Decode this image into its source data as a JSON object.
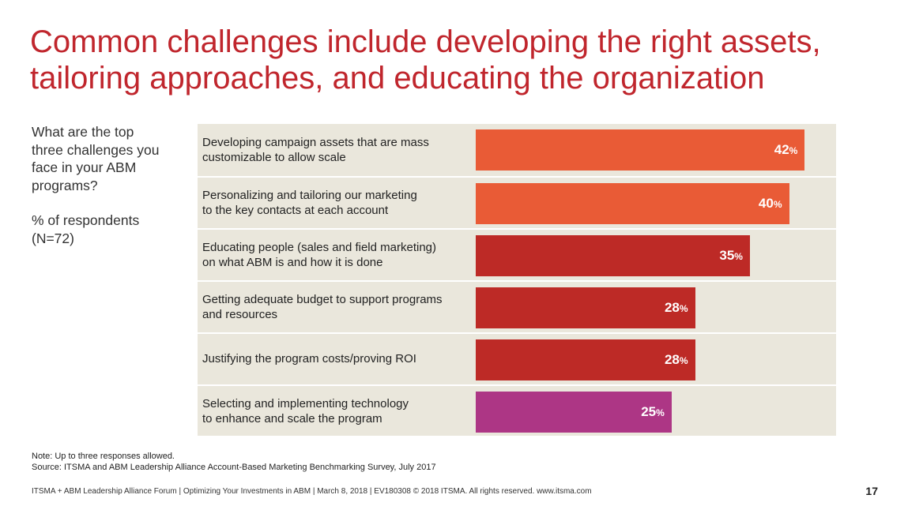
{
  "title": {
    "line1": "Common challenges include developing the right assets,",
    "line2": "tailoring approaches, and educating the organization"
  },
  "question": {
    "lines": [
      "What are the top",
      "three challenges you",
      "face in your ABM",
      "programs?"
    ],
    "respondents_lines": [
      "% of respondents",
      "(N=72)"
    ]
  },
  "chart_data": {
    "type": "bar",
    "orientation": "horizontal",
    "categories": [
      [
        "Developing campaign assets that are mass",
        "customizable to allow scale"
      ],
      [
        "Personalizing and tailoring our marketing",
        "to the key contacts at each account"
      ],
      [
        "Educating people (sales and field marketing)",
        "on what ABM is and how it is done"
      ],
      [
        "Getting adequate budget to support programs",
        "and resources"
      ],
      [
        "Justifying the program costs/proving ROI"
      ],
      [
        "Selecting and implementing technology",
        "to enhance and scale the program"
      ]
    ],
    "values": [
      42,
      40,
      35,
      28,
      28,
      25
    ],
    "value_suffix": "%",
    "bar_colors": [
      "#e95b36",
      "#e95b36",
      "#bd2a26",
      "#bd2a26",
      "#bd2a26",
      "#ad3685"
    ],
    "xlim": [
      0,
      46
    ],
    "grid": false,
    "background": "#eae7dc"
  },
  "notes": {
    "note": "Note: Up to three responses allowed.",
    "source": "Source: ITSMA and ABM Leadership Alliance Account-Based Marketing Benchmarking Survey, July 2017"
  },
  "footer": {
    "text": "ITSMA + ABM Leadership Alliance Forum | Optimizing Your Investments in ABM | March 8, 2018 | EV180308 © 2018 ITSMA. All rights reserved. www.itsma.com",
    "page_number": "17"
  }
}
